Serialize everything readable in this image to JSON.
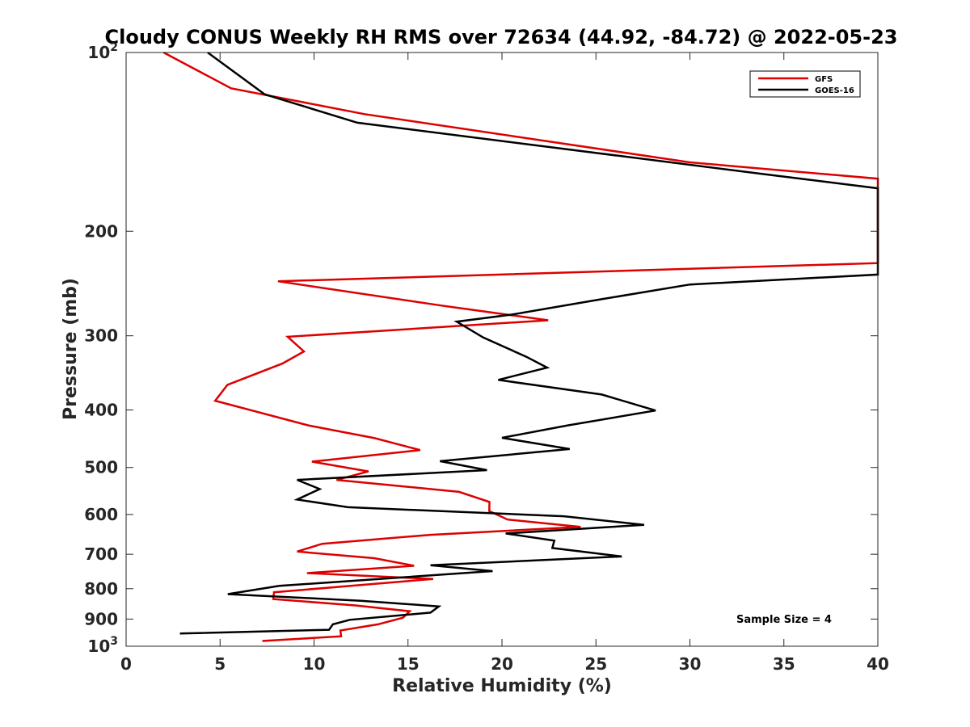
{
  "chart_data": {
    "type": "line",
    "title": "Cloudy CONUS Weekly RH RMS over 72634 (44.92, -84.72) @ 2022-05-23",
    "xlabel": "Relative Humidity (%)",
    "ylabel": "Pressure (mb)",
    "xlim": [
      0,
      40
    ],
    "ylim": [
      100,
      1000
    ],
    "y_scale": "log",
    "y_reversed": true,
    "grid": false,
    "legend_position": "top-right",
    "x_ticks": [
      "0",
      "5",
      "10",
      "15",
      "20",
      "25",
      "30",
      "35",
      "40"
    ],
    "y_ticks": [
      {
        "value": 100,
        "base": "10",
        "exp": "2"
      },
      {
        "value": 200,
        "label": "200"
      },
      {
        "value": 300,
        "label": "300"
      },
      {
        "value": 400,
        "label": "400"
      },
      {
        "value": 500,
        "label": "500"
      },
      {
        "value": 600,
        "label": "600"
      },
      {
        "value": 700,
        "label": "700"
      },
      {
        "value": 800,
        "label": "800"
      },
      {
        "value": 900,
        "label": "900"
      },
      {
        "value": 1000,
        "base": "10",
        "exp": "3"
      }
    ],
    "series": [
      {
        "name": "GFS",
        "color": "#dd0000",
        "points": [
          [
            1.994,
            100
          ],
          [
            5.586,
            114.9
          ],
          [
            12.692,
            127
          ],
          [
            30.0,
            153.1
          ],
          [
            40.0,
            163.1
          ],
          [
            40.0,
            226.3
          ],
          [
            8.082,
            242.8
          ],
          [
            16.759,
            266.8
          ],
          [
            22.459,
            282.5
          ],
          [
            8.6,
            301.1
          ],
          [
            9.464,
            318.8
          ],
          [
            8.313,
            334.2
          ],
          [
            5.394,
            362.8
          ],
          [
            4.741,
            385.9
          ],
          [
            9.693,
            424.7
          ],
          [
            13.224,
            446.2
          ],
          [
            15.648,
            467.4
          ],
          [
            9.887,
            488.8
          ],
          [
            12.9,
            507.6
          ],
          [
            11.2,
            524.7
          ],
          [
            17.714,
            549.5
          ],
          [
            19.334,
            571.5
          ],
          [
            19.326,
            592.1
          ],
          [
            20.3,
            611.9
          ],
          [
            24.181,
            629.4
          ],
          [
            16.2,
            649.2
          ],
          [
            10.431,
            672.2
          ],
          [
            9.1,
            692.6
          ],
          [
            13.2,
            710.8
          ],
          [
            15.319,
            731.9
          ],
          [
            9.627,
            753.1
          ],
          [
            16.338,
            770.4
          ],
          [
            12.6,
            788.1
          ],
          [
            7.872,
            811.1
          ],
          [
            7.831,
            832.9
          ],
          [
            12.2,
            853.7
          ],
          [
            15.088,
            873.2
          ],
          [
            14.731,
            895.3
          ],
          [
            13.4,
            918.5
          ],
          [
            11.4,
            940.7
          ],
          [
            11.443,
            962.2
          ],
          [
            7.248,
            979.8
          ]
        ]
      },
      {
        "name": "GOES-16",
        "color": "#000000",
        "points": [
          [
            4.34,
            100
          ],
          [
            7.37,
            117.6
          ],
          [
            12.306,
            131.3
          ],
          [
            34.0,
            160.4
          ],
          [
            40.0,
            169.3
          ],
          [
            40.0,
            236.6
          ],
          [
            30.0,
            245.9
          ],
          [
            25.3,
            260.3
          ],
          [
            20.5,
            276.4
          ],
          [
            17.59,
            284.0
          ],
          [
            19.0,
            302.0
          ],
          [
            21.3,
            325.5
          ],
          [
            22.404,
            339.4
          ],
          [
            19.8,
            356.0
          ],
          [
            25.306,
            376.8
          ],
          [
            28.173,
            400.8
          ],
          [
            23.5,
            424.7
          ],
          [
            20.0,
            445.6
          ],
          [
            23.605,
            465.4
          ],
          [
            16.7,
            487.9
          ],
          [
            19.2,
            505.2
          ],
          [
            9.1,
            524.7
          ],
          [
            10.3,
            543.6
          ],
          [
            9.1,
            566.2
          ],
          [
            11.8,
            583.3
          ],
          [
            23.3,
            604.1
          ],
          [
            27.567,
            624.5
          ],
          [
            20.2,
            645.7
          ],
          [
            22.783,
            664.0
          ],
          [
            22.68,
            683.3
          ],
          [
            26.376,
            706.1
          ],
          [
            16.2,
            730.3
          ],
          [
            19.5,
            747.2
          ],
          [
            8.15,
            791.3
          ],
          [
            5.409,
            817.1
          ],
          [
            12.5,
            838.2
          ],
          [
            16.641,
            856.8
          ],
          [
            16.2,
            877.9
          ],
          [
            11.9,
            902.6
          ],
          [
            11.0,
            918.5
          ],
          [
            10.8,
            938.1
          ],
          [
            2.865,
            952.1
          ]
        ]
      }
    ],
    "annotations": [
      "Sample Size = 4"
    ]
  }
}
